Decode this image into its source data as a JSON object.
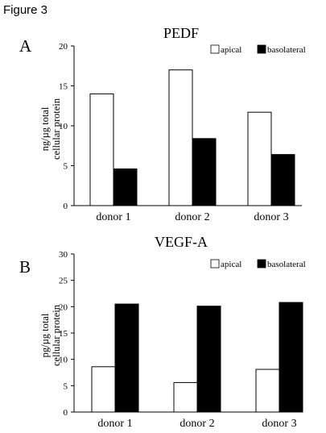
{
  "figure_label": "Figure 3",
  "chart_data": [
    {
      "type": "bar",
      "panel": "A",
      "title": "PEDF",
      "ylabel_lines": [
        "ng/µg total",
        "cellular protein"
      ],
      "xlabel": "",
      "ylim": [
        0,
        20
      ],
      "yticks": [
        0,
        5,
        10,
        15,
        20
      ],
      "categories": [
        "donor 1",
        "donor 2",
        "donor 3"
      ],
      "series": [
        {
          "name": "apical",
          "color": "#ffffff",
          "values": [
            14.0,
            17.0,
            11.7
          ]
        },
        {
          "name": "basolateral",
          "color": "#000000",
          "values": [
            4.6,
            8.4,
            6.4
          ]
        }
      ],
      "legend_position": "top-right",
      "grid": false
    },
    {
      "type": "bar",
      "panel": "B",
      "title": "VEGF-A",
      "ylabel_lines": [
        "pg/µg total",
        "cellular protein"
      ],
      "xlabel": "",
      "ylim": [
        0,
        30
      ],
      "yticks": [
        0,
        5,
        10,
        15,
        20,
        25,
        30
      ],
      "categories": [
        "donor 1",
        "donor 2",
        "donor 3"
      ],
      "series": [
        {
          "name": "apical",
          "color": "#ffffff",
          "values": [
            8.6,
            5.6,
            8.1
          ]
        },
        {
          "name": "basolateral",
          "color": "#000000",
          "values": [
            20.5,
            20.1,
            20.8
          ]
        }
      ],
      "legend_position": "top-right",
      "grid": false
    }
  ]
}
